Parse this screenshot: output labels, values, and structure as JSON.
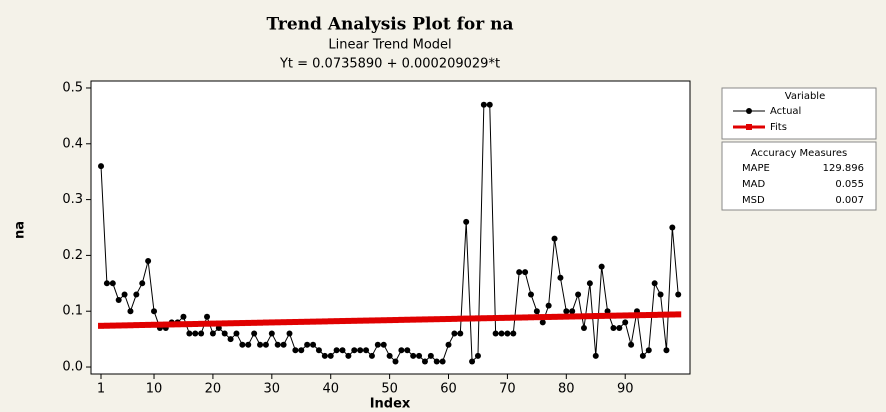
{
  "chart_data": {
    "type": "line",
    "title": "Trend Analysis Plot for na",
    "subtitle": "Linear Trend Model",
    "equation": "Yt = 0.0735890 + 0.000209029*t",
    "xlabel": "Index",
    "ylabel": "na",
    "x": [
      1,
      2,
      3,
      4,
      5,
      6,
      7,
      8,
      9,
      10,
      11,
      12,
      13,
      14,
      15,
      16,
      17,
      18,
      19,
      20,
      21,
      22,
      23,
      24,
      25,
      26,
      27,
      28,
      29,
      30,
      31,
      32,
      33,
      34,
      35,
      36,
      37,
      38,
      39,
      40,
      41,
      42,
      43,
      44,
      45,
      46,
      47,
      48,
      49,
      50,
      51,
      52,
      53,
      54,
      55,
      56,
      57,
      58,
      59,
      60,
      61,
      62,
      63,
      64,
      65,
      66,
      67,
      68,
      69,
      70,
      71,
      72,
      73,
      74,
      75,
      76,
      77,
      78,
      79,
      80,
      81,
      82,
      83,
      84,
      85,
      86,
      87,
      88,
      89,
      90,
      91,
      92,
      93,
      94,
      95,
      96,
      97,
      98,
      99
    ],
    "series": [
      {
        "name": "Actual",
        "color": "#000000",
        "values": [
          0.36,
          0.15,
          0.15,
          0.12,
          0.13,
          0.1,
          0.13,
          0.15,
          0.19,
          0.1,
          0.07,
          0.07,
          0.08,
          0.08,
          0.09,
          0.06,
          0.06,
          0.06,
          0.09,
          0.06,
          0.07,
          0.06,
          0.05,
          0.06,
          0.04,
          0.04,
          0.06,
          0.04,
          0.04,
          0.06,
          0.04,
          0.04,
          0.06,
          0.03,
          0.03,
          0.04,
          0.04,
          0.03,
          0.02,
          0.02,
          0.03,
          0.03,
          0.02,
          0.03,
          0.03,
          0.03,
          0.02,
          0.04,
          0.04,
          0.02,
          0.01,
          0.03,
          0.03,
          0.02,
          0.02,
          0.01,
          0.02,
          0.01,
          0.01,
          0.04,
          0.06,
          0.06,
          0.26,
          0.01,
          0.02,
          0.47,
          0.47,
          0.06,
          0.06,
          0.06,
          0.06,
          0.17,
          0.17,
          0.13,
          0.1,
          0.08,
          0.11,
          0.23,
          0.16,
          0.1,
          0.1,
          0.13,
          0.07,
          0.15,
          0.02,
          0.18,
          0.1,
          0.07,
          0.07,
          0.08,
          0.04,
          0.1,
          0.02,
          0.03,
          0.15,
          0.13,
          0.03,
          0.25,
          0.13
        ]
      },
      {
        "name": "Fits",
        "color": "#e00000",
        "values": [
          0.0738,
          0.074,
          0.0742,
          0.0744,
          0.0746,
          0.0748,
          0.0751,
          0.0753,
          0.0755,
          0.0757,
          0.0759,
          0.0761,
          0.0763,
          0.0765,
          0.0767,
          0.0769,
          0.0771,
          0.0774,
          0.0776,
          0.0778,
          0.078,
          0.0782,
          0.0784,
          0.0786,
          0.0788,
          0.079,
          0.0792,
          0.0794,
          0.0797,
          0.0799,
          0.0801,
          0.0803,
          0.0805,
          0.0807,
          0.0809,
          0.0811,
          0.0813,
          0.0815,
          0.0817,
          0.082,
          0.0822,
          0.0824,
          0.0826,
          0.0828,
          0.083,
          0.0832,
          0.0834,
          0.0836,
          0.0838,
          0.084,
          0.0842,
          0.0845,
          0.0847,
          0.0849,
          0.0851,
          0.0853,
          0.0855,
          0.0857,
          0.0859,
          0.0861,
          0.0863,
          0.0866,
          0.0868,
          0.087,
          0.0872,
          0.0874,
          0.0876,
          0.0878,
          0.088,
          0.0882,
          0.0884,
          0.0886,
          0.0888,
          0.0891,
          0.0893,
          0.0895,
          0.0897,
          0.0899,
          0.0901,
          0.0903,
          0.0905,
          0.0907,
          0.0909,
          0.0911,
          0.0914,
          0.0916,
          0.0918,
          0.092,
          0.0922,
          0.0924,
          0.0926,
          0.0928,
          0.093,
          0.0932,
          0.0934,
          0.0937,
          0.0939,
          0.0941,
          0.0943
        ]
      }
    ],
    "xlim": [
      -0.7,
      101
    ],
    "ylim": [
      -0.0125,
      0.5125
    ],
    "xticks": [
      1,
      10,
      20,
      30,
      40,
      50,
      60,
      70,
      80,
      90
    ],
    "yticks": [
      {
        "value": 0,
        "label": "0.0"
      },
      0.1,
      0.2,
      0.3,
      0.4,
      0.5
    ],
    "legend_title": "Variable",
    "accuracy": {
      "title": "Accuracy Measures",
      "rows": [
        [
          "MAPE",
          129.896
        ],
        [
          "MAD",
          0.055
        ],
        [
          "MSD",
          0.007
        ]
      ]
    }
  }
}
